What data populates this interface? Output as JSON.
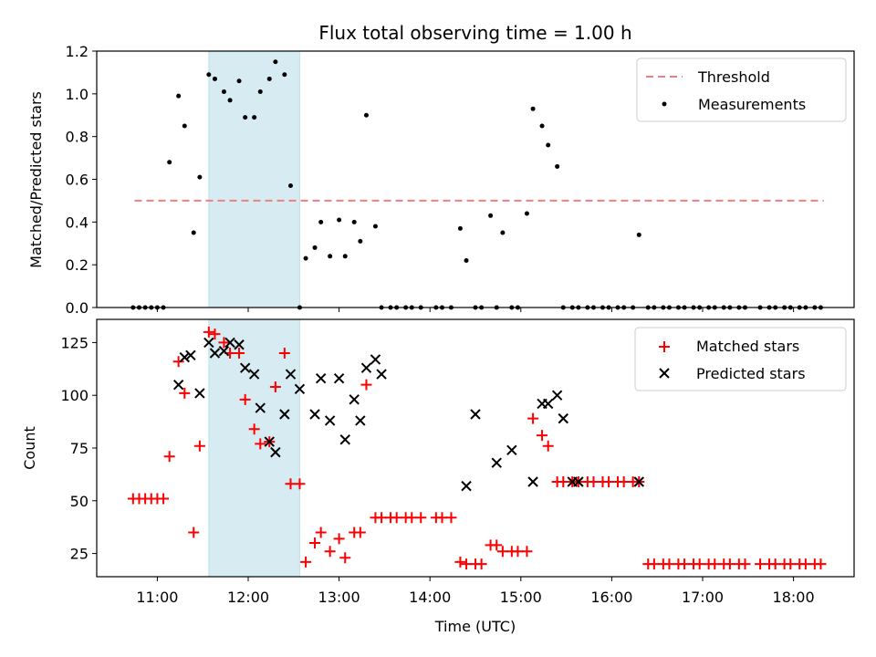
{
  "chart_data": [
    {
      "type": "scatter",
      "title": "Flux total observing time = 1.00 h",
      "xlabel": "",
      "ylabel": "Matched/Predicted stars",
      "xlim": [
        "10:20",
        "18:40"
      ],
      "ylim": [
        0,
        1.2
      ],
      "yticks": [
        0,
        0.2,
        0.4,
        0.6,
        0.8,
        1.0,
        1.2
      ],
      "ytick_labels": [
        "0.0",
        "0.2",
        "0.4",
        "0.6",
        "0.8",
        "1.0",
        "1.2"
      ],
      "highlight_span": [
        "11:34",
        "12:34"
      ],
      "legend_position": "top-right",
      "threshold": {
        "name": "Threshold",
        "value": 0.5,
        "x_range": [
          "10:45",
          "18:20"
        ],
        "color": "#f08080"
      },
      "series": [
        {
          "name": "Measurements",
          "color": "#000000",
          "x": [
            "10:44",
            "10:48",
            "10:52",
            "10:56",
            "11:00",
            "11:04",
            "11:08",
            "11:14",
            "11:18",
            "11:24",
            "11:28",
            "11:34",
            "11:38",
            "11:44",
            "11:48",
            "11:54",
            "11:58",
            "12:04",
            "12:08",
            "12:14",
            "12:18",
            "12:24",
            "12:28",
            "12:34",
            "12:38",
            "12:44",
            "12:48",
            "12:54",
            "13:00",
            "13:04",
            "13:10",
            "13:14",
            "13:18",
            "13:24",
            "13:28",
            "13:34",
            "13:38",
            "13:44",
            "13:48",
            "13:54",
            "14:04",
            "14:08",
            "14:14",
            "14:20",
            "14:24",
            "14:30",
            "14:34",
            "14:40",
            "14:44",
            "14:48",
            "14:54",
            "14:58",
            "15:04",
            "15:08",
            "15:14",
            "15:18",
            "15:24",
            "15:28",
            "15:34",
            "15:38",
            "15:44",
            "15:48",
            "15:54",
            "15:58",
            "16:04",
            "16:08",
            "16:14",
            "16:18",
            "16:24",
            "16:28",
            "16:34",
            "16:38",
            "16:44",
            "16:48",
            "16:54",
            "16:58",
            "17:04",
            "17:08",
            "17:14",
            "17:18",
            "17:24",
            "17:28",
            "17:38",
            "17:44",
            "17:48",
            "17:54",
            "17:58",
            "18:04",
            "18:08",
            "18:14",
            "18:18"
          ],
          "y": [
            0,
            0,
            0,
            0,
            0,
            0,
            0.68,
            0.99,
            0.85,
            0.35,
            0.61,
            1.09,
            1.07,
            1.01,
            0.97,
            1.06,
            0.89,
            0.89,
            1.01,
            1.07,
            1.15,
            1.09,
            0.57,
            0,
            0.23,
            0.28,
            0.4,
            0.24,
            0.41,
            0.24,
            0.4,
            0.31,
            0.9,
            0.38,
            0,
            0,
            0,
            0,
            0,
            0,
            0,
            0,
            0,
            0.37,
            0.22,
            0,
            0,
            0.43,
            0,
            0.35,
            0,
            0,
            0.44,
            0.93,
            0.85,
            0.76,
            0.66,
            0,
            0,
            0,
            0,
            0,
            0,
            0,
            0,
            0,
            0,
            0.34,
            0,
            0,
            0,
            0,
            0,
            0,
            0,
            0,
            0,
            0,
            0,
            0,
            0,
            0,
            0,
            0,
            0,
            0,
            0,
            0,
            0,
            0,
            0
          ]
        }
      ]
    },
    {
      "type": "scatter",
      "title": "",
      "xlabel": "Time (UTC)",
      "ylabel": "Count",
      "xlim": [
        "10:20",
        "18:40"
      ],
      "ylim": [
        14,
        136
      ],
      "yticks": [
        25,
        50,
        75,
        100,
        125
      ],
      "ytick_labels": [
        "25",
        "50",
        "75",
        "100",
        "125"
      ],
      "xticks": [
        "11:00",
        "12:00",
        "13:00",
        "14:00",
        "15:00",
        "16:00",
        "17:00",
        "18:00"
      ],
      "highlight_span": [
        "11:34",
        "12:34"
      ],
      "legend_position": "top-right",
      "series": [
        {
          "name": "Matched stars",
          "marker": "plus",
          "color": "#ff0000",
          "x": [
            "10:44",
            "10:48",
            "10:52",
            "10:56",
            "11:00",
            "11:04",
            "11:08",
            "11:14",
            "11:18",
            "11:24",
            "11:28",
            "11:34",
            "11:38",
            "11:44",
            "11:48",
            "11:54",
            "11:58",
            "12:04",
            "12:08",
            "12:14",
            "12:18",
            "12:24",
            "12:28",
            "12:34",
            "12:38",
            "12:44",
            "12:48",
            "12:54",
            "13:00",
            "13:04",
            "13:10",
            "13:14",
            "13:18",
            "13:24",
            "13:28",
            "13:34",
            "13:38",
            "13:44",
            "13:48",
            "13:54",
            "14:04",
            "14:08",
            "14:14",
            "14:20",
            "14:24",
            "14:30",
            "14:34",
            "14:40",
            "14:44",
            "14:48",
            "14:54",
            "14:58",
            "15:04",
            "15:08",
            "15:14",
            "15:18",
            "15:24",
            "15:28",
            "15:34",
            "15:38",
            "15:44",
            "15:48",
            "15:54",
            "15:58",
            "16:04",
            "16:08",
            "16:14",
            "16:18",
            "16:24",
            "16:28",
            "16:34",
            "16:38",
            "16:44",
            "16:48",
            "16:54",
            "16:58",
            "17:04",
            "17:08",
            "17:14",
            "17:18",
            "17:24",
            "17:28",
            "17:38",
            "17:44",
            "17:48",
            "17:54",
            "17:58",
            "18:04",
            "18:08",
            "18:14",
            "18:18"
          ],
          "y": [
            51,
            51,
            51,
            51,
            51,
            51,
            71,
            116,
            101,
            35,
            76,
            130,
            129,
            125,
            120,
            120,
            98,
            84,
            77,
            78,
            104,
            120,
            58,
            58,
            21,
            30,
            35,
            26,
            32,
            23,
            35,
            35,
            105,
            42,
            42,
            42,
            42,
            42,
            42,
            42,
            42,
            42,
            42,
            21,
            20,
            20,
            20,
            29,
            29,
            26,
            26,
            26,
            26,
            89,
            81,
            76,
            59,
            59,
            59,
            59,
            59,
            59,
            59,
            59,
            59,
            59,
            59,
            59,
            20,
            20,
            20,
            20,
            20,
            20,
            20,
            20,
            20,
            20,
            20,
            20,
            20,
            20,
            20,
            20,
            20,
            20,
            20,
            20,
            20,
            20,
            20
          ]
        },
        {
          "name": "Predicted stars",
          "marker": "x",
          "color": "#000000",
          "x": [
            "11:14",
            "11:18",
            "11:22",
            "11:28",
            "11:34",
            "11:38",
            "11:44",
            "11:48",
            "11:54",
            "11:58",
            "12:04",
            "12:08",
            "12:14",
            "12:18",
            "12:24",
            "12:28",
            "12:34",
            "12:44",
            "12:48",
            "12:54",
            "13:00",
            "13:04",
            "13:10",
            "13:14",
            "13:18",
            "13:24",
            "13:28",
            "14:24",
            "14:30",
            "14:44",
            "14:54",
            "15:08",
            "15:14",
            "15:18",
            "15:24",
            "15:28",
            "15:34",
            "15:38",
            "16:18"
          ],
          "y": [
            105,
            118,
            119,
            101,
            125,
            120,
            121,
            125,
            124,
            113,
            110,
            94,
            78,
            73,
            91,
            110,
            103,
            91,
            108,
            88,
            108,
            79,
            98,
            88,
            113,
            117,
            110,
            57,
            91,
            68,
            74,
            59,
            96,
            96,
            100,
            89,
            59,
            59,
            59
          ]
        }
      ]
    }
  ]
}
